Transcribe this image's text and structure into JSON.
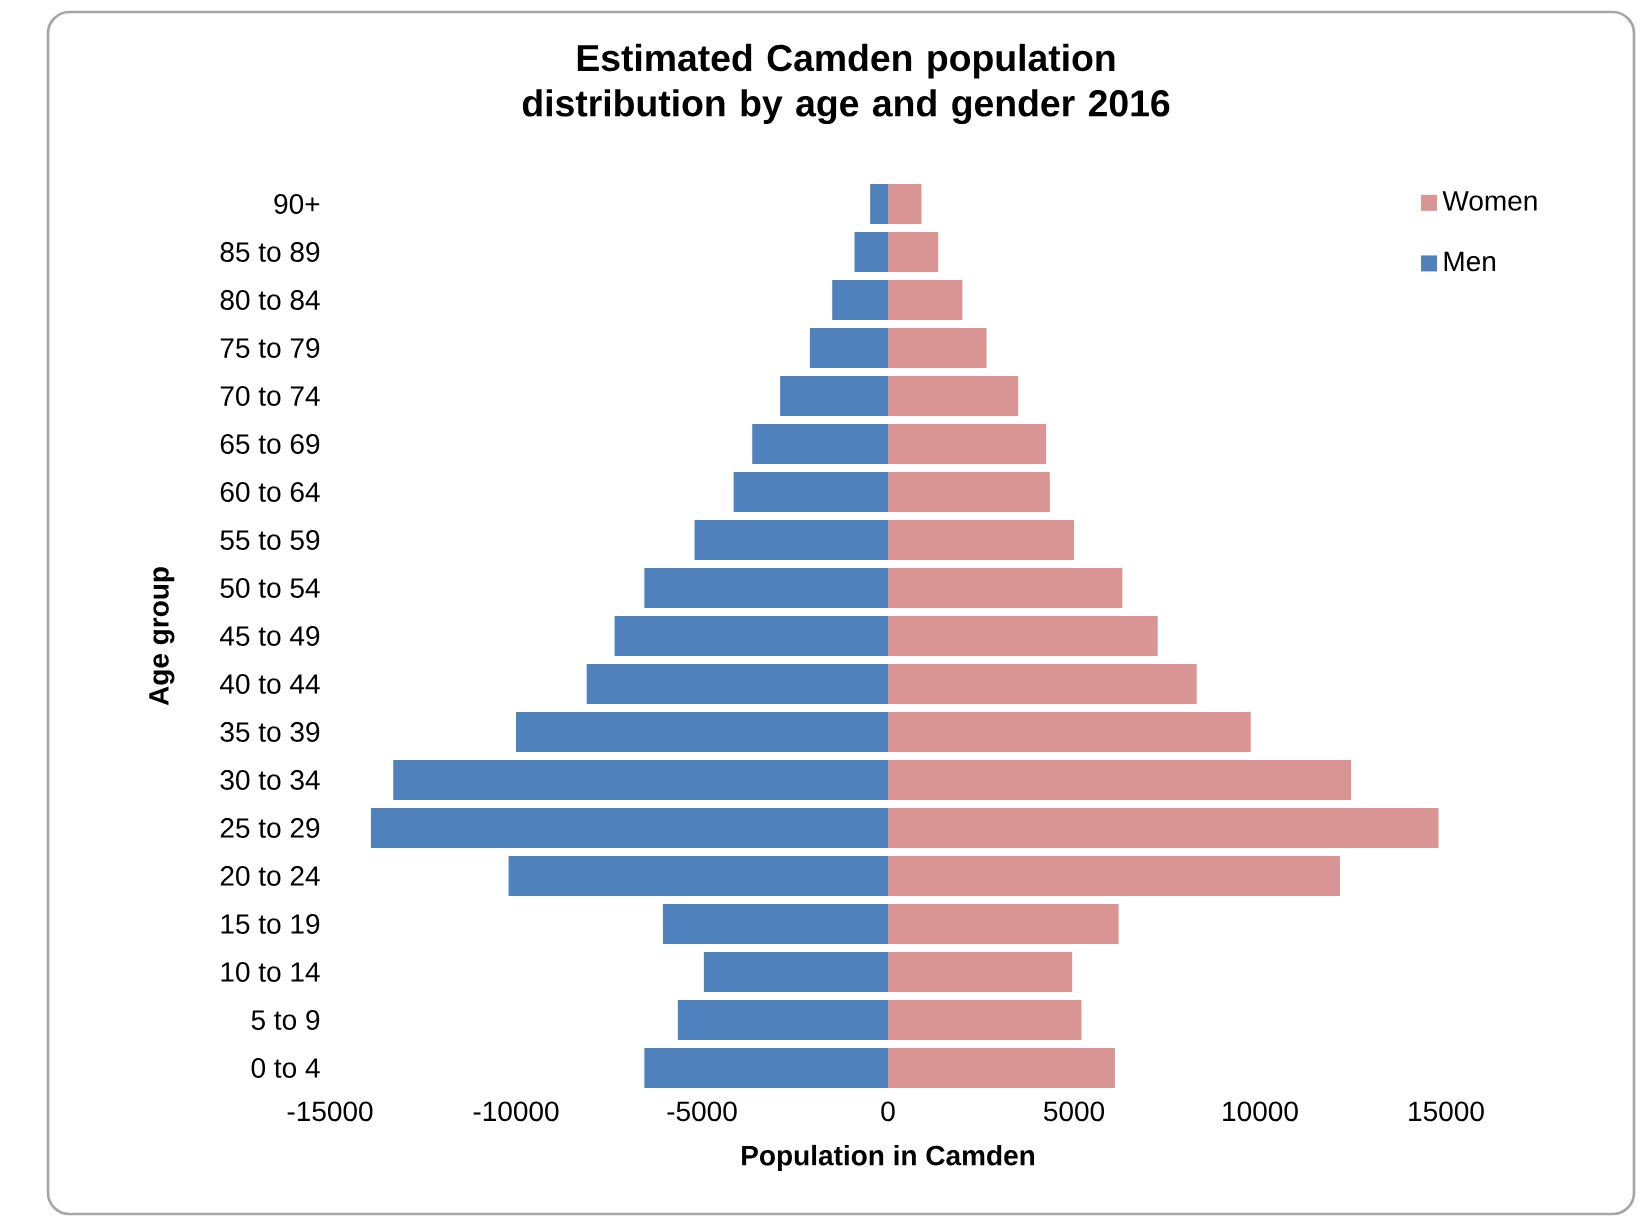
{
  "chart_data": {
    "type": "bar",
    "orientation": "horizontal",
    "stacked": true,
    "title": "Estimated Camden population distribution by age and gender 2016",
    "xlabel": "Population in Camden",
    "ylabel": "Age group",
    "categories": [
      "90+",
      "85 to 89",
      "80 to 84",
      "75 to 79",
      "70 to 74",
      "65 to 69",
      "60 to 64",
      "55 to 59",
      "50 to 54",
      "45 to 49",
      "40 to 44",
      "35 to 39",
      "30 to 34",
      "25 to 29",
      "20 to 24",
      "15 to 19",
      "10 to 14",
      "5 to 9",
      "0 to 4"
    ],
    "series": [
      {
        "name": "Women",
        "color": "#d99594",
        "values": [
          900,
          1350,
          2000,
          2650,
          3500,
          4250,
          4350,
          5000,
          6300,
          7250,
          8300,
          9750,
          12450,
          14800,
          12150,
          6200,
          4950,
          5200,
          6100
        ]
      },
      {
        "name": "Men",
        "color": "#4f81bd",
        "values": [
          -480,
          -900,
          -1500,
          -2100,
          -2900,
          -3650,
          -4150,
          -5200,
          -6550,
          -7350,
          -8100,
          -10000,
          -13300,
          -13900,
          -10200,
          -6050,
          -4950,
          -5650,
          -6550
        ]
      }
    ],
    "xlim": [
      -15000,
      15000
    ],
    "xticks": [
      -15000,
      -10000,
      -5000,
      0,
      5000,
      10000,
      15000
    ],
    "legend": "top right"
  }
}
